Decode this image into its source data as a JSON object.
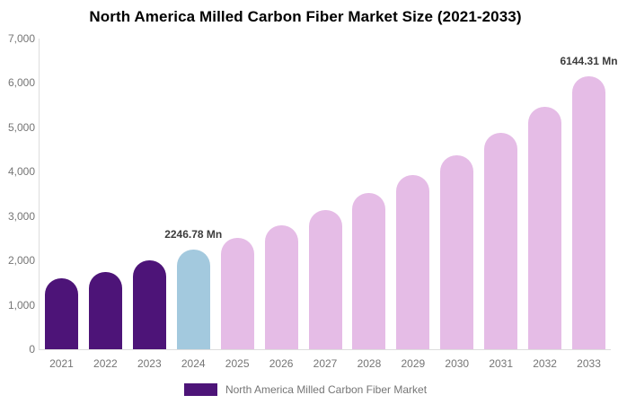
{
  "chart_data": {
    "type": "bar",
    "title": "North America Milled Carbon Fiber Market Size (2021-2033)",
    "categories": [
      "2021",
      "2022",
      "2023",
      "2024",
      "2025",
      "2026",
      "2027",
      "2028",
      "2029",
      "2030",
      "2031",
      "2032",
      "2033"
    ],
    "values": [
      1600,
      1750,
      2000,
      2246.78,
      2510,
      2800,
      3130,
      3520,
      3920,
      4380,
      4880,
      5460,
      6144.31
    ],
    "unit": "Mn",
    "point_labels": {
      "3": "2246.78 Mn",
      "12": "6144.31 Mn"
    },
    "bar_colors": [
      "#4d1478",
      "#4d1478",
      "#4d1478",
      "#a3c9de",
      "#e5bce6",
      "#e5bce6",
      "#e5bce6",
      "#e5bce6",
      "#e5bce6",
      "#e5bce6",
      "#e5bce6",
      "#e5bce6",
      "#e5bce6"
    ],
    "xlabel": "",
    "ylabel": "",
    "ylim": [
      0,
      7000
    ],
    "ytick_labels": [
      "0",
      "1,000",
      "2,000",
      "3,000",
      "4,000",
      "5,000",
      "6,000",
      "7,000"
    ],
    "grid": false,
    "legend": {
      "label": "North America Milled Carbon Fiber Market",
      "swatch_color": "#4d1478",
      "position": "bottom"
    }
  }
}
